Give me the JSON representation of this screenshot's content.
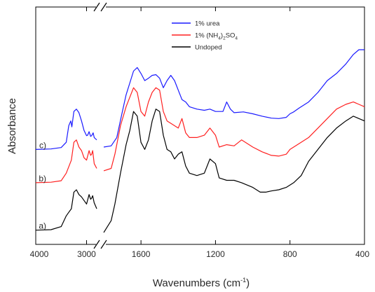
{
  "chart_data": {
    "type": "line",
    "xlabel": "Wavenumbers",
    "xunit_base": "cm",
    "xunit_exp": "-1",
    "ylabel": "Absorbance",
    "x_axis": "reversed, broken between 2800 and 1800",
    "xlim_left": [
      4000,
      2800
    ],
    "xlim_right": [
      1800,
      400
    ],
    "ylim": [
      0,
      1
    ],
    "y_ticks_shown": false,
    "x_ticks": [
      {
        "value": 4000,
        "label": "4000"
      },
      {
        "value": 3000,
        "label": "3000"
      },
      {
        "value": 1600,
        "label": "1600"
      },
      {
        "value": 1200,
        "label": "1200"
      },
      {
        "value": 800,
        "label": "800"
      },
      {
        "value": 400,
        "label": "400"
      }
    ],
    "legend_position": "top-center",
    "legend": [
      {
        "key": "urea",
        "parts": [
          {
            "t": "1% urea"
          }
        ],
        "color": "#1a1aff"
      },
      {
        "key": "ammonium",
        "parts": [
          {
            "t": "1% (NH"
          },
          {
            "t": "4",
            "sub": true
          },
          {
            "t": ")"
          },
          {
            "t": "2",
            "sub": true
          },
          {
            "t": "SO"
          },
          {
            "t": "4",
            "sub": true
          }
        ],
        "color": "#ff2020"
      },
      {
        "key": "undoped",
        "parts": [
          {
            "t": "Undoped"
          }
        ],
        "color": "#000000"
      }
    ],
    "series": [
      {
        "key": "urea",
        "curve_label": "c)",
        "color": "#1a1aff",
        "left": [
          [
            4000,
            0.4
          ],
          [
            3700,
            0.402
          ],
          [
            3500,
            0.408
          ],
          [
            3400,
            0.43
          ],
          [
            3350,
            0.5
          ],
          [
            3310,
            0.52
          ],
          [
            3290,
            0.495
          ],
          [
            3250,
            0.56
          ],
          [
            3200,
            0.57
          ],
          [
            3150,
            0.555
          ],
          [
            3100,
            0.52
          ],
          [
            3050,
            0.48
          ],
          [
            3000,
            0.458
          ],
          [
            2980,
            0.46
          ],
          [
            2950,
            0.475
          ],
          [
            2920,
            0.455
          ],
          [
            2900,
            0.458
          ],
          [
            2870,
            0.47
          ],
          [
            2850,
            0.45
          ],
          [
            2820,
            0.444
          ],
          [
            2800,
            0.44
          ]
        ],
        "right": [
          [
            1800,
            0.41
          ],
          [
            1760,
            0.415
          ],
          [
            1730,
            0.45
          ],
          [
            1700,
            0.56
          ],
          [
            1680,
            0.63
          ],
          [
            1660,
            0.68
          ],
          [
            1640,
            0.73
          ],
          [
            1620,
            0.745
          ],
          [
            1600,
            0.72
          ],
          [
            1580,
            0.69
          ],
          [
            1560,
            0.7
          ],
          [
            1540,
            0.712
          ],
          [
            1520,
            0.715
          ],
          [
            1500,
            0.7
          ],
          [
            1480,
            0.66
          ],
          [
            1460,
            0.69
          ],
          [
            1440,
            0.712
          ],
          [
            1420,
            0.69
          ],
          [
            1400,
            0.65
          ],
          [
            1380,
            0.61
          ],
          [
            1360,
            0.6
          ],
          [
            1340,
            0.58
          ],
          [
            1300,
            0.57
          ],
          [
            1260,
            0.565
          ],
          [
            1230,
            0.57
          ],
          [
            1200,
            0.56
          ],
          [
            1160,
            0.56
          ],
          [
            1140,
            0.6
          ],
          [
            1120,
            0.57
          ],
          [
            1100,
            0.555
          ],
          [
            1050,
            0.558
          ],
          [
            1000,
            0.55
          ],
          [
            950,
            0.54
          ],
          [
            900,
            0.532
          ],
          [
            860,
            0.53
          ],
          [
            820,
            0.535
          ],
          [
            800,
            0.55
          ],
          [
            780,
            0.558
          ],
          [
            750,
            0.575
          ],
          [
            700,
            0.6
          ],
          [
            650,
            0.64
          ],
          [
            600,
            0.69
          ],
          [
            550,
            0.72
          ],
          [
            500,
            0.76
          ],
          [
            460,
            0.8
          ],
          [
            430,
            0.82
          ],
          [
            400,
            0.82
          ]
        ]
      },
      {
        "key": "ammonium",
        "curve_label": "b)",
        "color": "#ff2020",
        "left": [
          [
            4000,
            0.26
          ],
          [
            3700,
            0.262
          ],
          [
            3500,
            0.268
          ],
          [
            3400,
            0.3
          ],
          [
            3300,
            0.355
          ],
          [
            3250,
            0.43
          ],
          [
            3200,
            0.44
          ],
          [
            3150,
            0.41
          ],
          [
            3100,
            0.395
          ],
          [
            3050,
            0.365
          ],
          [
            3000,
            0.355
          ],
          [
            2950,
            0.395
          ],
          [
            2920,
            0.375
          ],
          [
            2900,
            0.38
          ],
          [
            2880,
            0.395
          ],
          [
            2850,
            0.34
          ],
          [
            2800,
            0.32
          ]
        ],
        "right": [
          [
            1800,
            0.31
          ],
          [
            1760,
            0.32
          ],
          [
            1740,
            0.38
          ],
          [
            1710,
            0.5
          ],
          [
            1680,
            0.58
          ],
          [
            1660,
            0.62
          ],
          [
            1640,
            0.66
          ],
          [
            1620,
            0.64
          ],
          [
            1600,
            0.56
          ],
          [
            1580,
            0.54
          ],
          [
            1560,
            0.6
          ],
          [
            1540,
            0.64
          ],
          [
            1520,
            0.66
          ],
          [
            1500,
            0.65
          ],
          [
            1480,
            0.56
          ],
          [
            1460,
            0.52
          ],
          [
            1440,
            0.51
          ],
          [
            1420,
            0.5
          ],
          [
            1400,
            0.49
          ],
          [
            1380,
            0.53
          ],
          [
            1360,
            0.47
          ],
          [
            1340,
            0.45
          ],
          [
            1300,
            0.45
          ],
          [
            1260,
            0.46
          ],
          [
            1230,
            0.49
          ],
          [
            1200,
            0.46
          ],
          [
            1180,
            0.41
          ],
          [
            1140,
            0.42
          ],
          [
            1100,
            0.415
          ],
          [
            1060,
            0.44
          ],
          [
            1000,
            0.41
          ],
          [
            950,
            0.39
          ],
          [
            900,
            0.375
          ],
          [
            860,
            0.372
          ],
          [
            820,
            0.38
          ],
          [
            800,
            0.4
          ],
          [
            760,
            0.42
          ],
          [
            700,
            0.45
          ],
          [
            650,
            0.49
          ],
          [
            600,
            0.53
          ],
          [
            550,
            0.57
          ],
          [
            500,
            0.59
          ],
          [
            460,
            0.6
          ],
          [
            430,
            0.59
          ],
          [
            400,
            0.58
          ]
        ]
      },
      {
        "key": "undoped",
        "curve_label": "a)",
        "color": "#000000",
        "left": [
          [
            4000,
            0.06
          ],
          [
            3700,
            0.062
          ],
          [
            3500,
            0.075
          ],
          [
            3400,
            0.12
          ],
          [
            3350,
            0.135
          ],
          [
            3300,
            0.15
          ],
          [
            3250,
            0.22
          ],
          [
            3200,
            0.23
          ],
          [
            3150,
            0.21
          ],
          [
            3100,
            0.2
          ],
          [
            3050,
            0.185
          ],
          [
            3000,
            0.17
          ],
          [
            2950,
            0.21
          ],
          [
            2920,
            0.19
          ],
          [
            2900,
            0.195
          ],
          [
            2880,
            0.205
          ],
          [
            2850,
            0.175
          ],
          [
            2820,
            0.16
          ],
          [
            2800,
            0.15
          ]
        ],
        "right": [
          [
            1800,
            0.05
          ],
          [
            1760,
            0.1
          ],
          [
            1740,
            0.17
          ],
          [
            1710,
            0.3
          ],
          [
            1680,
            0.42
          ],
          [
            1660,
            0.48
          ],
          [
            1640,
            0.56
          ],
          [
            1620,
            0.54
          ],
          [
            1600,
            0.43
          ],
          [
            1580,
            0.4
          ],
          [
            1560,
            0.44
          ],
          [
            1540,
            0.52
          ],
          [
            1520,
            0.57
          ],
          [
            1500,
            0.56
          ],
          [
            1480,
            0.46
          ],
          [
            1460,
            0.4
          ],
          [
            1440,
            0.39
          ],
          [
            1420,
            0.36
          ],
          [
            1400,
            0.38
          ],
          [
            1380,
            0.39
          ],
          [
            1360,
            0.33
          ],
          [
            1340,
            0.3
          ],
          [
            1300,
            0.29
          ],
          [
            1260,
            0.3
          ],
          [
            1230,
            0.36
          ],
          [
            1200,
            0.34
          ],
          [
            1180,
            0.28
          ],
          [
            1140,
            0.27
          ],
          [
            1100,
            0.27
          ],
          [
            1060,
            0.26
          ],
          [
            1000,
            0.24
          ],
          [
            960,
            0.22
          ],
          [
            930,
            0.22
          ],
          [
            900,
            0.225
          ],
          [
            860,
            0.23
          ],
          [
            820,
            0.24
          ],
          [
            780,
            0.26
          ],
          [
            740,
            0.29
          ],
          [
            700,
            0.35
          ],
          [
            650,
            0.4
          ],
          [
            600,
            0.45
          ],
          [
            550,
            0.49
          ],
          [
            500,
            0.52
          ],
          [
            460,
            0.54
          ],
          [
            430,
            0.53
          ],
          [
            400,
            0.52
          ]
        ]
      }
    ]
  }
}
